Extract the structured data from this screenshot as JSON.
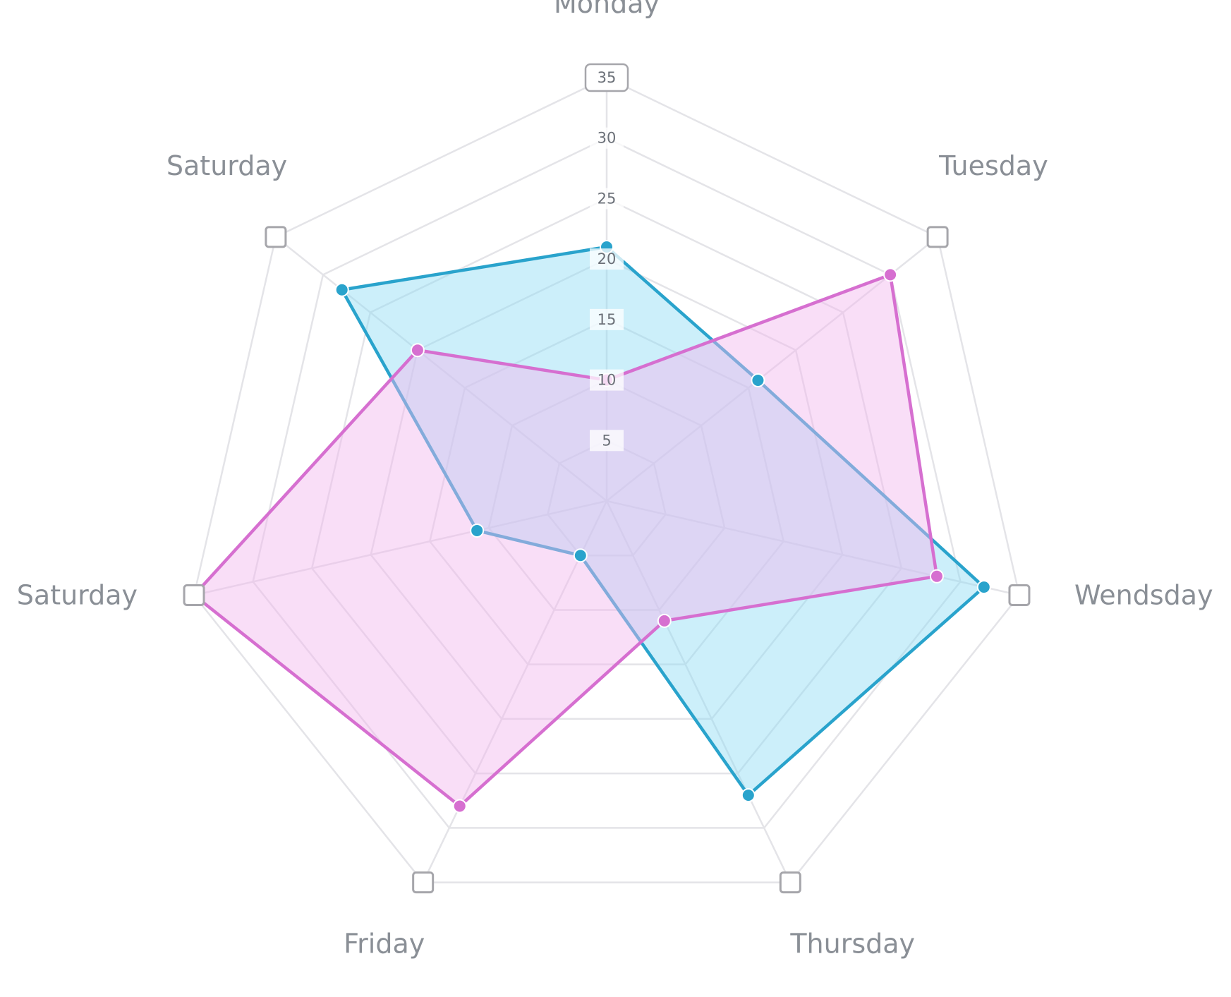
{
  "chart_data": {
    "type": "radar",
    "axes": [
      "Monday",
      "Tuesday",
      "Wendsday",
      "Thursday",
      "Friday",
      "Saturday",
      "Saturday"
    ],
    "r_ticks": [
      5,
      10,
      15,
      20,
      25,
      30,
      35
    ],
    "r_tick_labels": [
      "5",
      "10",
      "15",
      "20",
      "25",
      "30",
      "35"
    ],
    "rlim": [
      0,
      35
    ],
    "grid": true,
    "legend": "none",
    "series": [
      {
        "values": [
          21,
          16,
          32,
          27,
          5,
          11,
          28
        ],
        "color": "#29a3cc",
        "fill": "#8fdcf5"
      },
      {
        "values": [
          10,
          30,
          28,
          11,
          28,
          35,
          20
        ],
        "color": "#d66fd0",
        "fill": "#f2b6ee"
      }
    ]
  }
}
